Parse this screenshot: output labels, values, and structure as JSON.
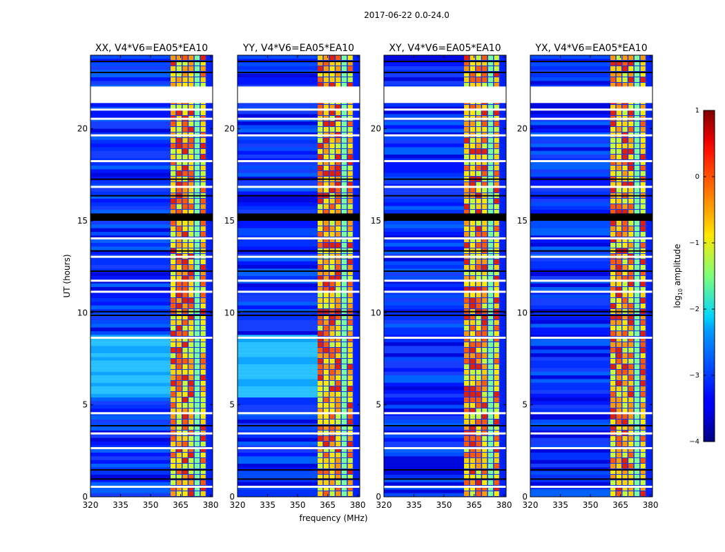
{
  "figure": {
    "suptitle": "2017-06-22 0.0-24.0",
    "ylabel": "UT (hours)",
    "xlabel": "frequency (MHz)"
  },
  "chart_data": [
    {
      "type": "heatmap",
      "title": "XX, V4*V6=EA05*EA10",
      "xlim": [
        320,
        381
      ],
      "ylim": [
        0,
        24
      ],
      "x_ticks": [
        320,
        335,
        350,
        365,
        380
      ],
      "y_ticks": [
        0,
        5,
        10,
        15,
        20
      ],
      "tick_labels_y": true
    },
    {
      "type": "heatmap",
      "title": "YY, V4*V6=EA05*EA10",
      "xlim": [
        320,
        381
      ],
      "ylim": [
        0,
        24
      ],
      "x_ticks": [
        320,
        335,
        350,
        365,
        380
      ],
      "y_ticks": [
        0,
        5,
        10,
        15,
        20
      ],
      "tick_labels_y": true
    },
    {
      "type": "heatmap",
      "title": "XY, V4*V6=EA05*EA10",
      "xlim": [
        320,
        381
      ],
      "ylim": [
        0,
        24
      ],
      "x_ticks": [
        320,
        335,
        350,
        365,
        380
      ],
      "y_ticks": [
        0,
        5,
        10,
        15,
        20
      ],
      "tick_labels_y": true
    },
    {
      "type": "heatmap",
      "title": "YX, V4*V6=EA05*EA10",
      "xlim": [
        320,
        381
      ],
      "ylim": [
        0,
        24
      ],
      "x_ticks": [
        320,
        335,
        350,
        365,
        380
      ],
      "y_ticks": [
        0,
        5,
        10,
        15,
        20
      ],
      "tick_labels_y": true
    }
  ],
  "colorbar": {
    "label_prefix": "log",
    "label_sub": "10",
    "label_suffix": " amplitude",
    "range": [
      -4,
      1
    ],
    "ticks": [
      1,
      0,
      -1,
      -2,
      -3,
      -4
    ],
    "tick_labels": [
      "1",
      "0",
      "−1",
      "−2",
      "−3",
      "−4"
    ],
    "colormap": "jet"
  }
}
